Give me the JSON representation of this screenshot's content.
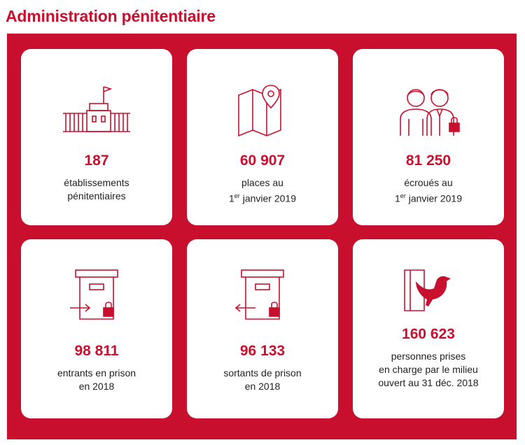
{
  "title": "Administration pénitentiaire",
  "colors": {
    "accent": "#c8102e",
    "card": "#ffffff"
  },
  "cards": [
    {
      "icon": "prison-building-icon",
      "value": "187",
      "line1": "établissements",
      "line2": "pénitentiaires"
    },
    {
      "icon": "map-pin-icon",
      "value": "60 907",
      "line1": "places au",
      "line2_sup": "er",
      "line2_prefix": "1",
      "line2": "janvier 2019"
    },
    {
      "icon": "detainees-icon",
      "value": "81 250",
      "line1": "écroués au",
      "line2_sup": "er",
      "line2_prefix": "1",
      "line2": "janvier 2019"
    },
    {
      "icon": "door-enter-icon",
      "value": "98 811",
      "line1": "entrants en prison",
      "line2": "en 2018"
    },
    {
      "icon": "door-exit-icon",
      "value": "96 133",
      "line1": "sortants de prison",
      "line2": "en 2018"
    },
    {
      "icon": "dove-icon",
      "value": "160 623",
      "line1": "personnes prises",
      "line2": "en charge par le milieu",
      "line3": "ouvert au 31 déc. 2018"
    }
  ]
}
